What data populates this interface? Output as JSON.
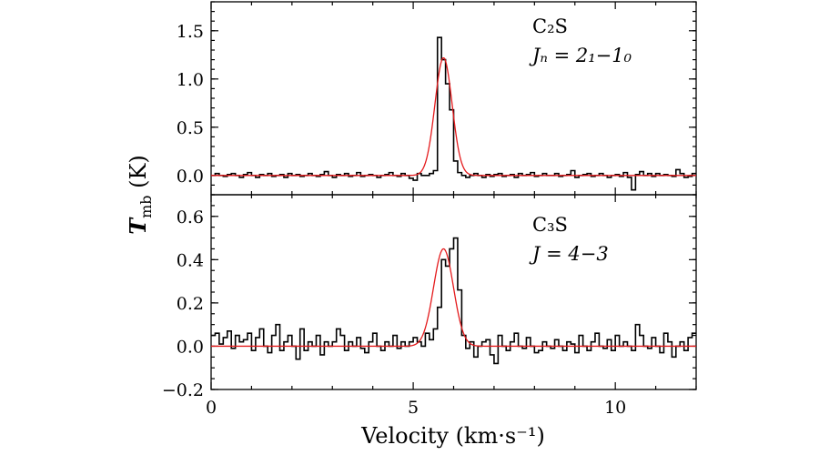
{
  "chart_data": [
    {
      "type": "line",
      "panel": "top",
      "label_line1": "C₂S",
      "label_line2": "Jₙ = 2₁−1₀",
      "xlim": [
        0,
        12
      ],
      "ylim": [
        -0.2,
        1.8
      ],
      "yticks": [
        0.0,
        0.5,
        1.0,
        1.5
      ],
      "ytick_labels": [
        "0.0",
        "0.5",
        "1.0",
        "1.5"
      ],
      "series": [
        {
          "kind": "step",
          "bin_width": 0.1,
          "x_start": 0.0,
          "values": [
            0.0,
            0.02,
            0.0,
            -0.01,
            0.01,
            0.02,
            0.0,
            -0.02,
            0.01,
            0.03,
            0.0,
            -0.02,
            0.01,
            0.0,
            0.02,
            -0.01,
            0.0,
            0.01,
            -0.02,
            0.02,
            0.0,
            0.01,
            -0.01,
            0.0,
            0.02,
            0.0,
            -0.01,
            0.01,
            0.04,
            0.0,
            -0.02,
            0.01,
            0.0,
            0.02,
            -0.01,
            0.0,
            0.03,
            -0.01,
            0.0,
            0.01,
            0.0,
            -0.02,
            0.0,
            0.01,
            0.03,
            0.0,
            -0.01,
            0.02,
            0.0,
            -0.03,
            -0.05,
            0.02,
            0.0,
            0.0,
            0.02,
            0.05,
            1.43,
            1.2,
            0.95,
            0.68,
            0.15,
            0.03,
            0.0,
            -0.02,
            0.0,
            0.02,
            0.0,
            -0.02,
            0.01,
            -0.01,
            0.01,
            0.02,
            -0.01,
            0.0,
            0.01,
            -0.02,
            0.02,
            0.0,
            0.01,
            0.03,
            -0.01,
            0.0,
            0.02,
            0.0,
            0.0,
            0.02,
            -0.01,
            0.0,
            0.01,
            0.05,
            -0.02,
            0.0,
            0.01,
            0.02,
            -0.01,
            0.0,
            0.02,
            0.0,
            -0.02,
            0.0,
            0.01,
            -0.01,
            0.03,
            -0.02,
            -0.15,
            0.01,
            0.04,
            0.0,
            0.02,
            -0.01,
            0.02,
            0.0,
            0.01,
            0.0,
            -0.01,
            0.06,
            0.02,
            -0.02,
            -0.01,
            0.02
          ]
        },
        {
          "kind": "gaussian-fit",
          "amplitude": 1.22,
          "center": 5.75,
          "fwhm": 0.5
        }
      ]
    },
    {
      "type": "line",
      "panel": "bottom",
      "label_line1": "C₃S",
      "label_line2": "J = 4−3",
      "xlim": [
        0,
        12
      ],
      "ylim": [
        -0.2,
        0.7
      ],
      "yticks": [
        -0.2,
        0.0,
        0.2,
        0.4,
        0.6
      ],
      "ytick_labels": [
        "−0.2",
        "0.0",
        "0.2",
        "0.4",
        "0.6"
      ],
      "series": [
        {
          "kind": "step",
          "bin_width": 0.1,
          "x_start": 0.0,
          "values": [
            0.05,
            0.06,
            0.01,
            0.04,
            0.07,
            -0.01,
            0.05,
            0.02,
            0.03,
            0.06,
            -0.02,
            0.04,
            0.08,
            0.0,
            -0.03,
            0.05,
            0.1,
            -0.02,
            0.02,
            0.05,
            0.0,
            -0.06,
            0.08,
            -0.02,
            0.02,
            0.0,
            0.05,
            -0.04,
            0.02,
            0.0,
            0.02,
            0.08,
            0.05,
            -0.02,
            0.02,
            0.0,
            0.04,
            -0.01,
            -0.03,
            0.02,
            0.06,
            0.0,
            -0.02,
            0.02,
            0.0,
            0.05,
            -0.01,
            0.02,
            0.0,
            0.02,
            0.04,
            0.02,
            0.0,
            0.06,
            0.03,
            0.08,
            0.18,
            0.4,
            0.37,
            0.45,
            0.5,
            0.26,
            0.05,
            -0.01,
            0.02,
            -0.05,
            0.0,
            0.02,
            0.03,
            -0.04,
            -0.08,
            0.05,
            0.0,
            -0.02,
            0.02,
            0.06,
            0.0,
            -0.01,
            0.04,
            0.0,
            -0.03,
            -0.02,
            0.02,
            0.0,
            -0.01,
            0.03,
            0.0,
            -0.02,
            0.02,
            0.01,
            -0.03,
            0.05,
            0.0,
            -0.02,
            0.02,
            0.06,
            0.0,
            -0.01,
            0.03,
            -0.02,
            0.05,
            0.0,
            0.02,
            0.0,
            -0.02,
            0.1,
            0.05,
            0.0,
            -0.01,
            0.04,
            0.0,
            -0.03,
            0.06,
            0.02,
            -0.05,
            0.0,
            0.02,
            -0.02,
            0.04,
            0.06
          ]
        },
        {
          "kind": "gaussian-fit",
          "amplitude": 0.45,
          "center": 5.75,
          "fwhm": 0.58
        }
      ]
    }
  ],
  "xticks": [
    0,
    5,
    10
  ],
  "xtick_labels": [
    "0",
    "5",
    "10"
  ],
  "xlabel": "Velocity (km·s⁻¹)",
  "ylabel_main": "T",
  "ylabel_sub": "mb",
  "ylabel_unit": " (K)",
  "colors": {
    "spectrum": "#000000",
    "fit": "#e41a1c"
  }
}
